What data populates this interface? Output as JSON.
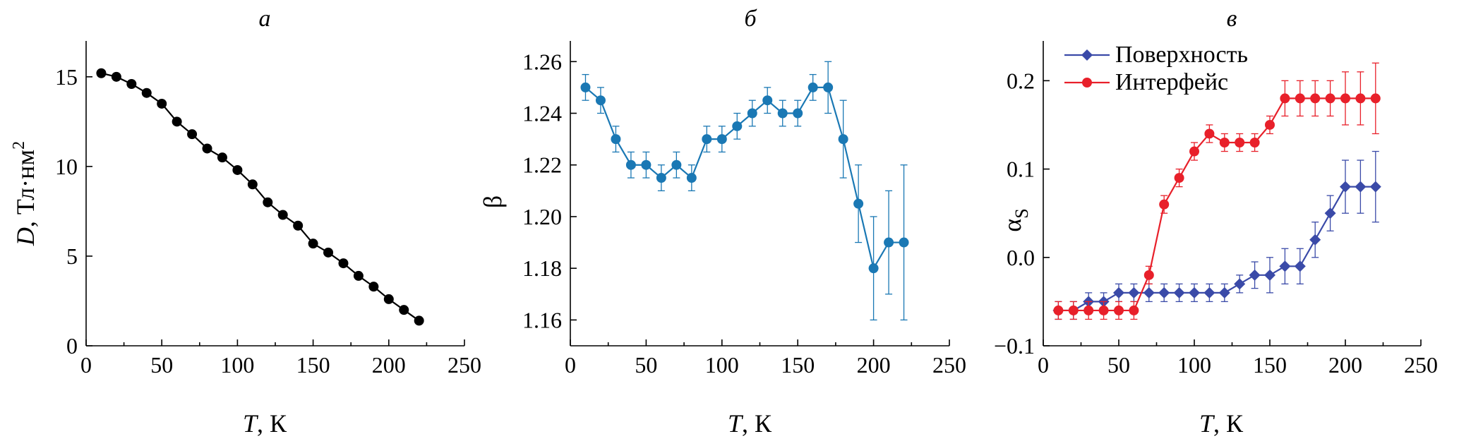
{
  "chart_data": [
    {
      "type": "line",
      "title": "а",
      "xlabel_italic": "T",
      "xlabel_rest": ", К",
      "ylabel_italic": "D",
      "ylabel_rest": ", Тл·нм",
      "ylabel_sup": "2",
      "xlim": [
        0,
        250
      ],
      "ylim": [
        0,
        17
      ],
      "xticks": [
        0,
        50,
        100,
        150,
        200,
        250
      ],
      "yticks": [
        0,
        5,
        10,
        15
      ],
      "series": [
        {
          "color": "#000000",
          "marker": "circle",
          "x": [
            10,
            20,
            30,
            40,
            50,
            60,
            70,
            80,
            90,
            100,
            110,
            120,
            130,
            140,
            150,
            160,
            170,
            180,
            190,
            200,
            210,
            220
          ],
          "y": [
            15.2,
            15.0,
            14.6,
            14.1,
            13.5,
            12.5,
            11.8,
            11.0,
            10.5,
            9.8,
            9.0,
            8.0,
            7.3,
            6.7,
            5.7,
            5.2,
            4.6,
            3.9,
            3.3,
            2.6,
            2.0,
            1.4
          ]
        }
      ]
    },
    {
      "type": "line",
      "title": "б",
      "xlabel_italic": "T",
      "xlabel_rest": ", К",
      "ylabel": "β",
      "xlim": [
        0,
        250
      ],
      "ylim": [
        1.15,
        1.268
      ],
      "xticks": [
        0,
        50,
        100,
        150,
        200,
        250
      ],
      "yticks": [
        1.16,
        1.18,
        1.2,
        1.22,
        1.24,
        1.26
      ],
      "ytick_labels": [
        "1.16",
        "1.18",
        "1.20",
        "1.22",
        "1.24",
        "1.26"
      ],
      "series": [
        {
          "color": "#1a78b4",
          "marker": "circle",
          "x": [
            10,
            20,
            30,
            40,
            50,
            60,
            70,
            80,
            90,
            100,
            110,
            120,
            130,
            140,
            150,
            160,
            170,
            180,
            190,
            200,
            210,
            220
          ],
          "y": [
            1.25,
            1.245,
            1.23,
            1.22,
            1.22,
            1.215,
            1.22,
            1.215,
            1.23,
            1.23,
            1.235,
            1.24,
            1.245,
            1.24,
            1.24,
            1.25,
            1.25,
            1.23,
            1.205,
            1.18,
            1.19,
            1.19
          ],
          "err": [
            0.005,
            0.005,
            0.005,
            0.005,
            0.005,
            0.005,
            0.005,
            0.005,
            0.005,
            0.005,
            0.005,
            0.005,
            0.005,
            0.005,
            0.005,
            0.005,
            0.01,
            0.015,
            0.015,
            0.02,
            0.02,
            0.03
          ]
        }
      ]
    },
    {
      "type": "line",
      "title": "в",
      "xlabel_italic": "T",
      "xlabel_rest": ", К",
      "ylabel": "α",
      "ylabel_sub": "S",
      "xlim": [
        0,
        250
      ],
      "ylim": [
        -0.1,
        0.245
      ],
      "xticks": [
        0,
        50,
        100,
        150,
        200,
        250
      ],
      "yticks": [
        -0.1,
        0.0,
        0.1,
        0.2
      ],
      "ytick_labels": [
        "−0.1",
        "0.0",
        "0.1",
        "0.2"
      ],
      "legend": "top-left",
      "series": [
        {
          "name": "Поверхность",
          "color": "#3a4aa8",
          "marker": "diamond",
          "x": [
            10,
            20,
            30,
            40,
            50,
            60,
            70,
            80,
            90,
            100,
            110,
            120,
            130,
            140,
            150,
            160,
            170,
            180,
            190,
            200,
            210,
            220
          ],
          "y": [
            -0.06,
            -0.06,
            -0.05,
            -0.05,
            -0.04,
            -0.04,
            -0.04,
            -0.04,
            -0.04,
            -0.04,
            -0.04,
            -0.04,
            -0.03,
            -0.02,
            -0.02,
            -0.01,
            -0.01,
            0.02,
            0.05,
            0.08,
            0.08,
            0.08
          ],
          "err": [
            0.01,
            0.01,
            0.01,
            0.01,
            0.01,
            0.01,
            0.01,
            0.01,
            0.01,
            0.01,
            0.01,
            0.01,
            0.01,
            0.015,
            0.02,
            0.02,
            0.02,
            0.02,
            0.02,
            0.03,
            0.03,
            0.04
          ]
        },
        {
          "name": "Интерфейс",
          "color": "#e8202a",
          "marker": "circle",
          "x": [
            10,
            20,
            30,
            40,
            50,
            60,
            70,
            80,
            90,
            100,
            110,
            120,
            130,
            140,
            150,
            160,
            170,
            180,
            190,
            200,
            210,
            220
          ],
          "y": [
            -0.06,
            -0.06,
            -0.06,
            -0.06,
            -0.06,
            -0.06,
            -0.02,
            0.06,
            0.09,
            0.12,
            0.14,
            0.13,
            0.13,
            0.13,
            0.15,
            0.18,
            0.18,
            0.18,
            0.18,
            0.18,
            0.18,
            0.18
          ],
          "err": [
            0.01,
            0.01,
            0.01,
            0.01,
            0.01,
            0.01,
            0.01,
            0.01,
            0.01,
            0.01,
            0.01,
            0.01,
            0.01,
            0.01,
            0.01,
            0.02,
            0.02,
            0.02,
            0.02,
            0.03,
            0.03,
            0.04
          ]
        }
      ]
    }
  ]
}
